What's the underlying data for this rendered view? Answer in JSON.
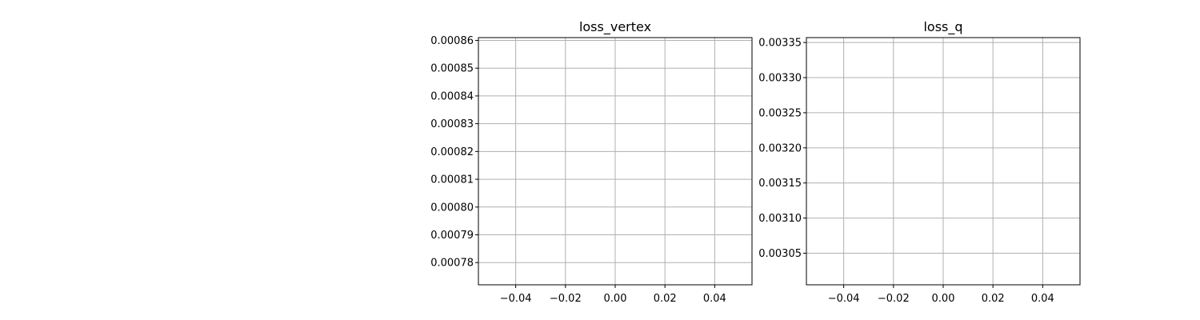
{
  "chart_data": [
    {
      "type": "line",
      "title": "loss_vertex",
      "xlabel": "",
      "ylabel": "",
      "x": [],
      "series": [],
      "xlim": [
        -0.055,
        0.055
      ],
      "ylim": [
        0.000772,
        0.000861
      ],
      "xticks": [
        -0.04,
        -0.02,
        0.0,
        0.02,
        0.04
      ],
      "xtick_labels": [
        "−0.04",
        "−0.02",
        "0.00",
        "0.02",
        "0.04"
      ],
      "yticks": [
        0.00078,
        0.00079,
        0.0008,
        0.00081,
        0.00082,
        0.00083,
        0.00084,
        0.00085,
        0.00086
      ],
      "ytick_labels": [
        "0.00078",
        "0.00079",
        "0.00080",
        "0.00081",
        "0.00082",
        "0.00083",
        "0.00084",
        "0.00085",
        "0.00086"
      ],
      "grid": true
    },
    {
      "type": "line",
      "title": "loss_q",
      "xlabel": "",
      "ylabel": "",
      "x": [],
      "series": [],
      "xlim": [
        -0.055,
        0.055
      ],
      "ylim": [
        0.003005,
        0.003357
      ],
      "xticks": [
        -0.04,
        -0.02,
        0.0,
        0.02,
        0.04
      ],
      "xtick_labels": [
        "−0.04",
        "−0.02",
        "0.00",
        "0.02",
        "0.04"
      ],
      "yticks": [
        0.00305,
        0.0031,
        0.00315,
        0.0032,
        0.00325,
        0.0033,
        0.00335
      ],
      "ytick_labels": [
        "0.00305",
        "0.00310",
        "0.00315",
        "0.00320",
        "0.00325",
        "0.00330",
        "0.00335"
      ],
      "grid": true
    }
  ]
}
